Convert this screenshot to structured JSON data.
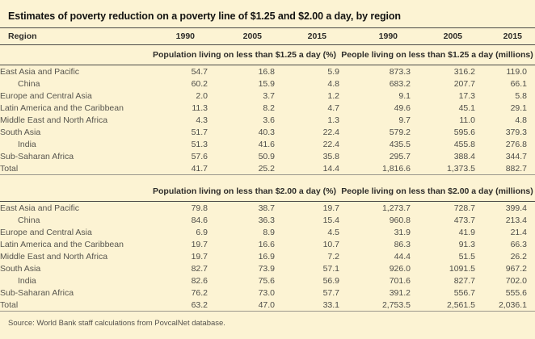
{
  "title": "Estimates of poverty reduction on a poverty line of $1.25 and $2.00 a day, by region",
  "columns": {
    "region": "Region",
    "years": [
      "1990",
      "2005",
      "2015",
      "1990",
      "2005",
      "2015"
    ]
  },
  "panels": [
    {
      "pct_header": "Population living on less than $1.25 a day (%)",
      "millions_header": "People living on less than $1.25 a day (millions)",
      "rows": [
        {
          "region": "East Asia and Pacific",
          "indent": false,
          "total": false,
          "values": [
            "54.7",
            "16.8",
            "5.9",
            "873.3",
            "316.2",
            "119.0"
          ]
        },
        {
          "region": "China",
          "indent": true,
          "total": false,
          "values": [
            "60.2",
            "15.9",
            "4.8",
            "683.2",
            "207.7",
            "66.1"
          ]
        },
        {
          "region": "Europe and Central Asia",
          "indent": false,
          "total": false,
          "values": [
            "2.0",
            "3.7",
            "1.2",
            "9.1",
            "17.3",
            "5.8"
          ]
        },
        {
          "region": "Latin America and the Caribbean",
          "indent": false,
          "total": false,
          "values": [
            "11.3",
            "8.2",
            "4.7",
            "49.6",
            "45.1",
            "29.1"
          ]
        },
        {
          "region": "Middle East and North Africa",
          "indent": false,
          "total": false,
          "values": [
            "4.3",
            "3.6",
            "1.3",
            "9.7",
            "11.0",
            "4.8"
          ]
        },
        {
          "region": "South Asia",
          "indent": false,
          "total": false,
          "values": [
            "51.7",
            "40.3",
            "22.4",
            "579.2",
            "595.6",
            "379.3"
          ]
        },
        {
          "region": "India",
          "indent": true,
          "total": false,
          "values": [
            "51.3",
            "41.6",
            "22.4",
            "435.5",
            "455.8",
            "276.8"
          ]
        },
        {
          "region": "Sub-Saharan Africa",
          "indent": false,
          "total": false,
          "values": [
            "57.6",
            "50.9",
            "35.8",
            "295.7",
            "388.4",
            "344.7"
          ]
        },
        {
          "region": "Total",
          "indent": false,
          "total": true,
          "values": [
            "41.7",
            "25.2",
            "14.4",
            "1,816.6",
            "1,373.5",
            "882.7"
          ]
        }
      ]
    },
    {
      "pct_header": "Population living on less than $2.00 a day (%)",
      "millions_header": "People living on less than $2.00 a day (millions)",
      "rows": [
        {
          "region": "East Asia and Pacific",
          "indent": false,
          "total": false,
          "values": [
            "79.8",
            "38.7",
            "19.7",
            "1,273.7",
            "728.7",
            "399.4"
          ]
        },
        {
          "region": "China",
          "indent": true,
          "total": false,
          "values": [
            "84.6",
            "36.3",
            "15.4",
            "960.8",
            "473.7",
            "213.4"
          ]
        },
        {
          "region": "Europe and Central Asia",
          "indent": false,
          "total": false,
          "values": [
            "6.9",
            "8.9",
            "4.5",
            "31.9",
            "41.9",
            "21.4"
          ]
        },
        {
          "region": "Latin America and the Caribbean",
          "indent": false,
          "total": false,
          "values": [
            "19.7",
            "16.6",
            "10.7",
            "86.3",
            "91.3",
            "66.3"
          ]
        },
        {
          "region": "Middle East and North Africa",
          "indent": false,
          "total": false,
          "values": [
            "19.7",
            "16.9",
            "7.2",
            "44.4",
            "51.5",
            "26.2"
          ]
        },
        {
          "region": "South Asia",
          "indent": false,
          "total": false,
          "values": [
            "82.7",
            "73.9",
            "57.1",
            "926.0",
            "1091.5",
            "967.2"
          ]
        },
        {
          "region": "India",
          "indent": true,
          "total": false,
          "values": [
            "82.6",
            "75.6",
            "56.9",
            "701.6",
            "827.7",
            "702.0"
          ]
        },
        {
          "region": "Sub-Saharan Africa",
          "indent": false,
          "total": false,
          "values": [
            "76.2",
            "73.0",
            "57.7",
            "391.2",
            "556.7",
            "555.6"
          ]
        },
        {
          "region": "Total",
          "indent": false,
          "total": true,
          "values": [
            "63.2",
            "47.0",
            "33.1",
            "2,753.5",
            "2,561.5",
            "2,036.1"
          ]
        }
      ]
    }
  ],
  "source": "Source: World Bank staff calculations from PovcalNet database.",
  "colors": {
    "background": "#FCF3D3",
    "rule_dark": "#4a4a46",
    "rule_light": "#9b978c",
    "title_text": "#131311",
    "body_text": "#4f4e49"
  }
}
